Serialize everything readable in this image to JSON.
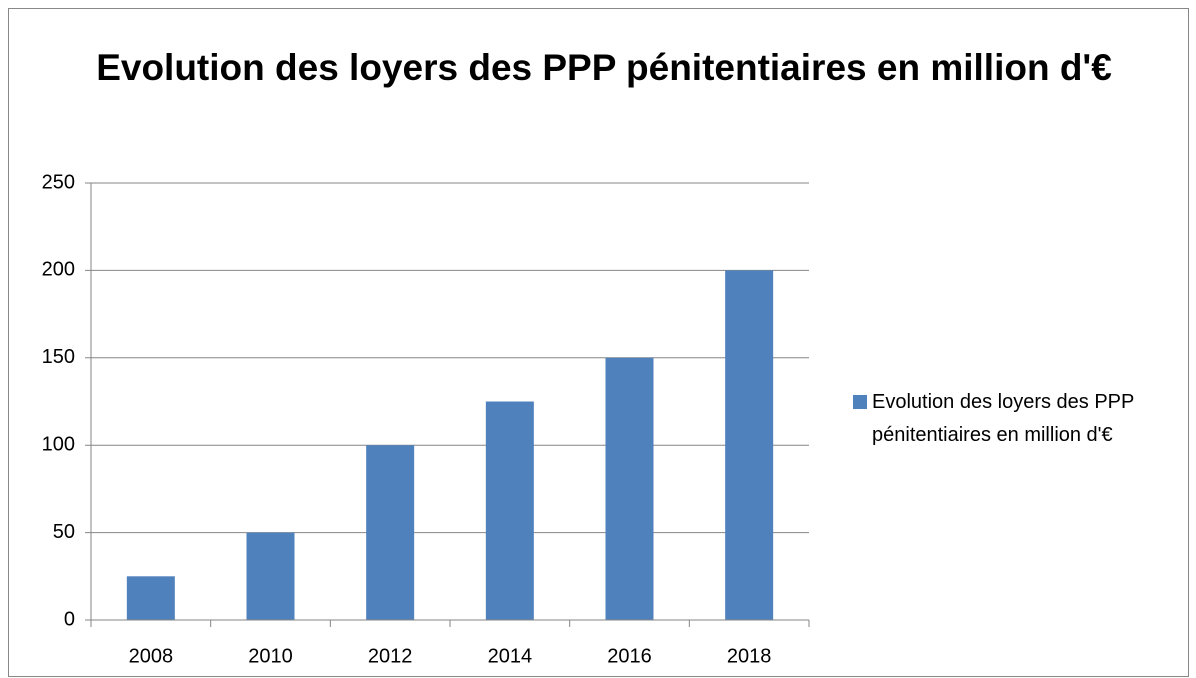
{
  "chart_data": {
    "type": "bar",
    "title": "Evolution des loyers des PPP pénitentiaires en million d'€",
    "categories": [
      "2008",
      "2010",
      "2012",
      "2014",
      "2016",
      "2018"
    ],
    "series": [
      {
        "name": "Evolution des loyers des PPP pénitentiaires en million d'€",
        "color": "#4f81bd",
        "values": [
          25,
          50,
          100,
          125,
          150,
          200
        ]
      }
    ],
    "ylim": [
      0,
      250
    ],
    "yticks": [
      0,
      50,
      100,
      150,
      200,
      250
    ],
    "grid": true,
    "legend": "right"
  }
}
